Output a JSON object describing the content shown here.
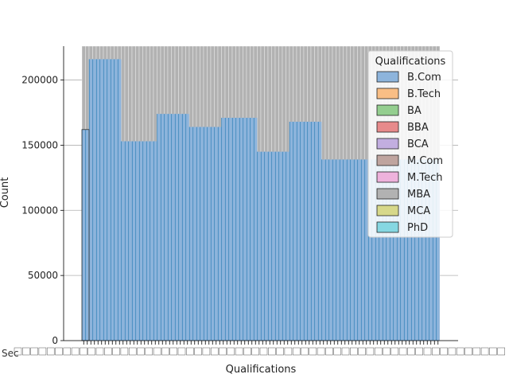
{
  "chart_data": {
    "type": "bar",
    "title": "",
    "xlabel": "Qualifications",
    "ylabel": "Count",
    "ylim": [
      0,
      226000
    ],
    "yticks": [
      0,
      50000,
      100000,
      150000,
      200000
    ],
    "ytick_labels": [
      "0",
      "50000",
      "100000",
      "150000",
      "200000"
    ],
    "grid": true,
    "legend_title": "Qualifications",
    "legend_position": "top-right",
    "legend": [
      {
        "label": "B.Com",
        "color": "#8db4dc"
      },
      {
        "label": "B.Tech",
        "color": "#f9be85"
      },
      {
        "label": "BA",
        "color": "#94ce8f"
      },
      {
        "label": "BBA",
        "color": "#e78a8b"
      },
      {
        "label": "BCA",
        "color": "#c2aee0"
      },
      {
        "label": "M.Com",
        "color": "#bfa49f"
      },
      {
        "label": "M.Tech",
        "color": "#eeb2dc"
      },
      {
        "label": "MBA",
        "color": "#b2b2b2"
      },
      {
        "label": "MCA",
        "color": "#d7d88a"
      },
      {
        "label": "PhD",
        "color": "#86d7e2"
      }
    ],
    "background_bars": {
      "series": "MBA",
      "color": "#b2b2b2",
      "count": 100,
      "value": 226000
    },
    "foreground_bars": {
      "series": "B.Com",
      "color": "#8db4dc",
      "edge_color": "#1f77b4",
      "groups": [
        {
          "value": 162000,
          "count": 2
        },
        {
          "value": 216000,
          "count": 9
        },
        {
          "value": 153000,
          "count": 10
        },
        {
          "value": 174000,
          "count": 9
        },
        {
          "value": 164000,
          "count": 9
        },
        {
          "value": 171000,
          "count": 10
        },
        {
          "value": 145000,
          "count": 9
        },
        {
          "value": 168000,
          "count": 9
        },
        {
          "value": 139000,
          "count": 10
        },
        {
          "value": 139000,
          "count": 23
        }
      ]
    },
    "xtick_first_label": "Sec"
  }
}
